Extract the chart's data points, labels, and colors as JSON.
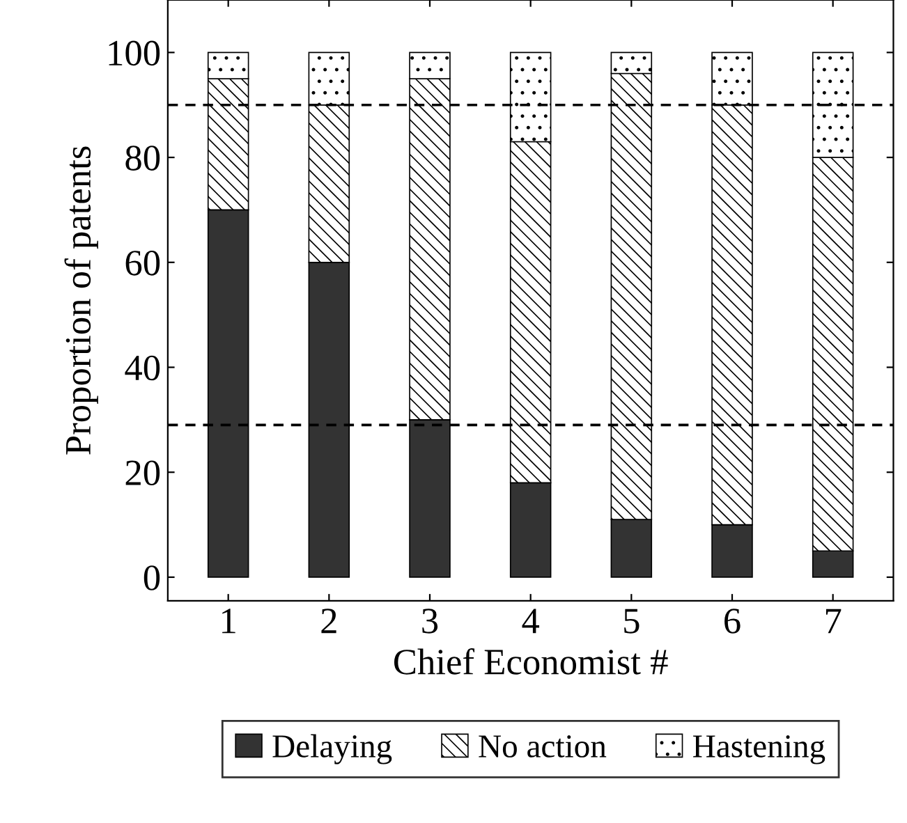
{
  "chart_data": {
    "type": "bar",
    "stacked": true,
    "xlabel": "Chief Economist #",
    "ylabel": "Proportion of patents",
    "categories": [
      "1",
      "2",
      "3",
      "4",
      "5",
      "6",
      "7"
    ],
    "series": [
      {
        "name": "Delaying",
        "color": "#333333",
        "values": [
          70,
          60,
          30,
          18,
          11,
          10,
          5
        ]
      },
      {
        "name": "No action",
        "color": "#000000",
        "values": [
          25,
          30,
          65,
          65,
          85,
          80,
          75
        ]
      },
      {
        "name": "Hastening",
        "color": "#000000",
        "values": [
          5,
          10,
          5,
          17,
          4,
          10,
          20
        ]
      }
    ],
    "ylim": [
      -4.5,
      110
    ],
    "yticks": [
      0,
      20,
      40,
      60,
      80,
      100
    ],
    "ref_lines": [
      {
        "axis": "y",
        "value": 90,
        "line_style": "dashed",
        "color": "#000000"
      },
      {
        "axis": "y",
        "value": 29,
        "line_style": "dashed",
        "color": "#000000"
      }
    ],
    "legend": "bottom",
    "grid": false
  }
}
